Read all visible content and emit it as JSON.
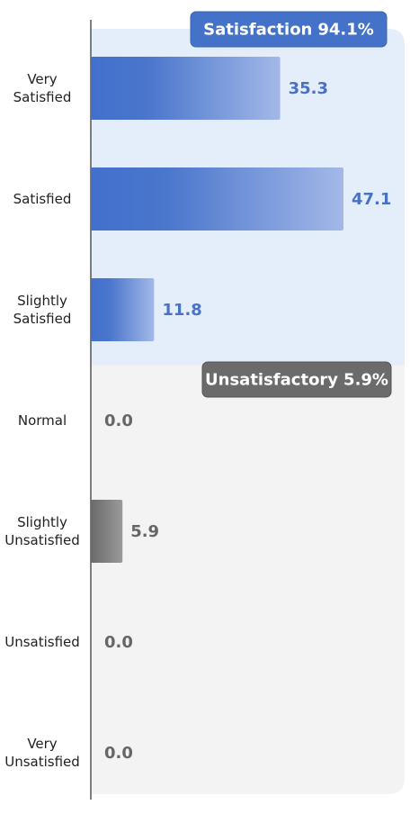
{
  "chart_data": {
    "type": "bar",
    "orientation": "horizontal",
    "categories": [
      "Very Satisfied",
      "Satisfied",
      "Slightly Satisfied",
      "Normal",
      "Slightly Unsatisfied",
      "Unsatisfied",
      "Very Unsatisfied"
    ],
    "values": [
      35.3,
      47.1,
      11.8,
      0,
      5.9,
      0,
      0
    ],
    "value_labels": [
      "35.3",
      "47.1",
      "11.8",
      "0.0",
      "5.9",
      "0.0",
      "0.0"
    ],
    "colors": [
      "#4472c8",
      "#4472c8",
      "#4472c8",
      "#707070",
      "#707070",
      "#707070",
      "#707070"
    ],
    "groups": [
      {
        "name": "Satisfaction",
        "value": 94.1,
        "label": "94.1%",
        "color": "#4472c8",
        "background": "#e4edfa"
      },
      {
        "name": "Unsatisfactory",
        "value": 5.9,
        "label": "5.9%",
        "color": "#6b6b6b",
        "background": "#f3f3f3"
      }
    ]
  }
}
